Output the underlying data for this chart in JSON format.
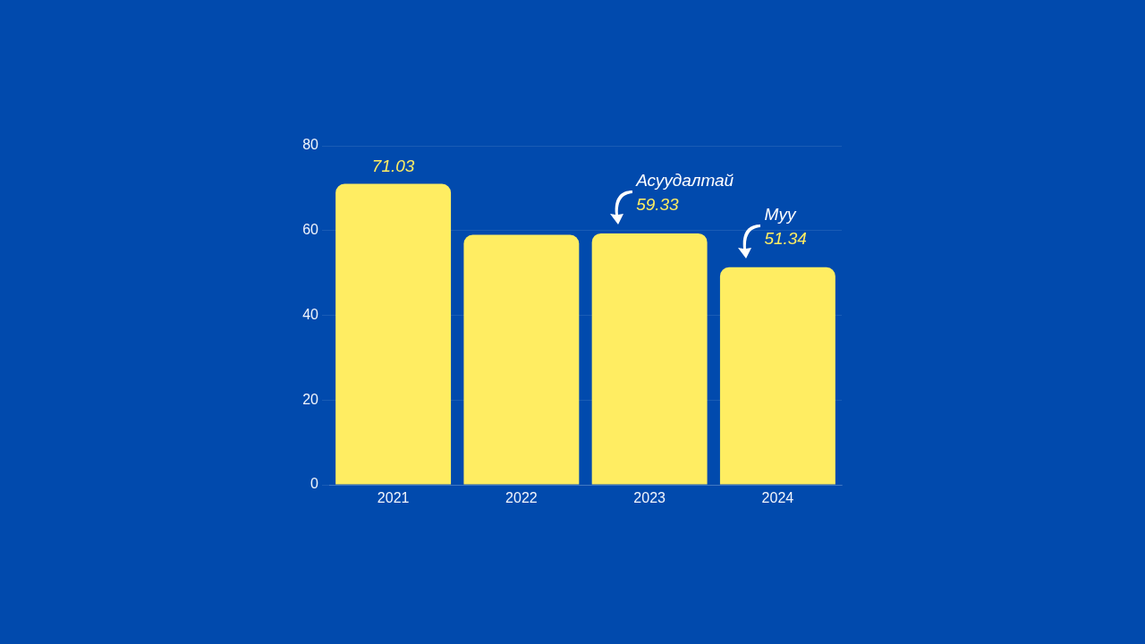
{
  "chart_data": {
    "type": "bar",
    "categories": [
      "2021",
      "2022",
      "2023",
      "2024"
    ],
    "values": [
      71.03,
      59,
      59.33,
      51.34
    ],
    "color": "#ffed62",
    "value_labels": [
      "71.03",
      null,
      "59.33",
      "51.34"
    ],
    "ylim": [
      0,
      80
    ],
    "yticks": [
      0,
      20,
      40,
      60,
      80
    ],
    "grid": "y",
    "annotations": [
      {
        "text": "Асуудалтай",
        "x": "2023",
        "y": 59.33
      },
      {
        "text": "Муу",
        "x": "2024",
        "y": 51.34
      }
    ]
  }
}
